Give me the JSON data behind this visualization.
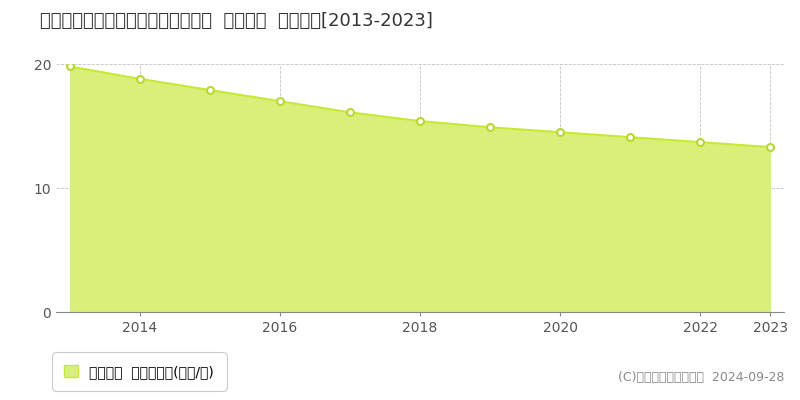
{
  "title": "新潟県上越市中央１丁目３４３番５  基準地価  地価推移[2013-2023]",
  "years": [
    2013,
    2014,
    2015,
    2016,
    2017,
    2018,
    2019,
    2020,
    2021,
    2022,
    2023
  ],
  "values": [
    19.8,
    18.8,
    17.9,
    17.0,
    16.1,
    15.4,
    14.9,
    14.5,
    14.1,
    13.7,
    13.3
  ],
  "ylim": [
    0,
    20
  ],
  "yticks": [
    0,
    10,
    20
  ],
  "line_color": "#c8e838",
  "fill_color": "#d8f07a",
  "marker_fill": "#ffffff",
  "marker_edge": "#b8d830",
  "grid_color": "#aaaaaa",
  "bg_color": "#ffffff",
  "legend_label": "基準地価  平均嵪単価(万円/嵪)",
  "copyright_text": "(C)土地価格ドットコム  2024-09-28",
  "title_fontsize": 13,
  "axis_fontsize": 10,
  "legend_fontsize": 10,
  "copyright_fontsize": 9
}
